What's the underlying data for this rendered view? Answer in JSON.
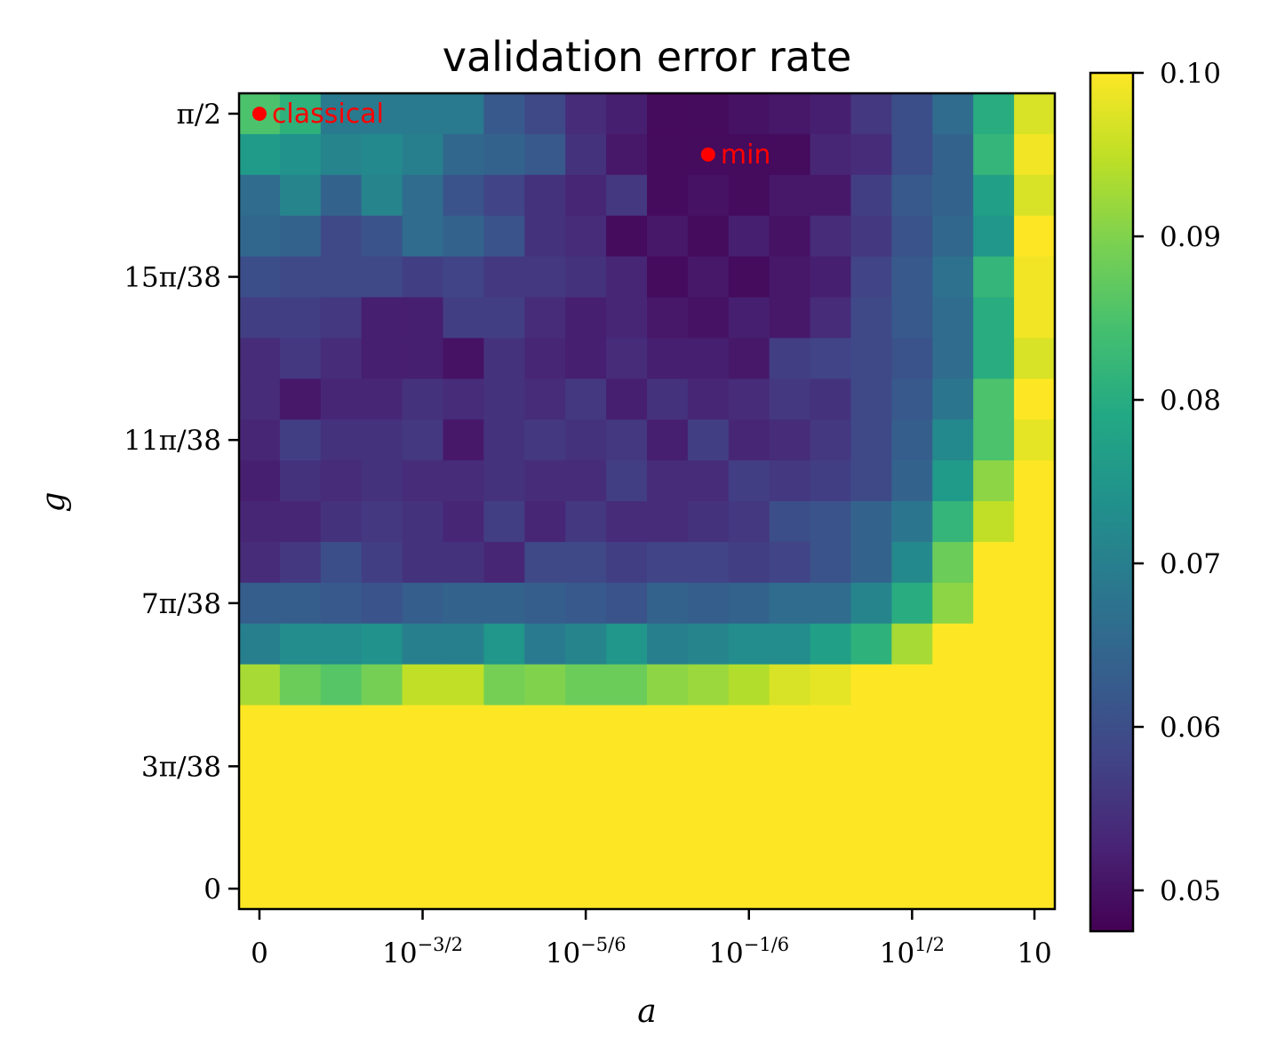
{
  "chart_data": {
    "type": "heatmap",
    "title": "validation error rate",
    "xlabel": "a",
    "ylabel": "g",
    "colormap": "viridis",
    "x_tick_labels": [
      {
        "col": 0,
        "text": "0"
      },
      {
        "col": 4,
        "text": "10",
        "sup": "−3/2"
      },
      {
        "col": 8,
        "text": "10",
        "sup": "−5/6"
      },
      {
        "col": 12,
        "text": "10",
        "sup": "−1/6"
      },
      {
        "col": 16,
        "text": "10",
        "sup": "1/2"
      },
      {
        "col": 19,
        "text": "10"
      }
    ],
    "y_tick_labels": [
      {
        "row": 0,
        "text": "π/2"
      },
      {
        "row": 4,
        "text": "15π/38"
      },
      {
        "row": 8,
        "text": "11π/38"
      },
      {
        "row": 12,
        "text": "7π/38"
      },
      {
        "row": 16,
        "text": "3π/38"
      },
      {
        "row": 19,
        "text": "0"
      }
    ],
    "colorbar": {
      "vmin": 0.0475,
      "vmax": 0.1,
      "ticks": [
        0.05,
        0.06,
        0.07,
        0.08,
        0.09,
        0.1
      ],
      "tick_labels": [
        "0.05",
        "0.06",
        "0.07",
        "0.08",
        "0.09",
        "0.10"
      ]
    },
    "grid": false,
    "rows_order": "top row = g=π/2, bottom row = g=0; columns from a=0 to a=10",
    "values": [
      [
        0.085,
        0.081,
        0.069,
        0.069,
        0.069,
        0.069,
        0.062,
        0.059,
        0.054,
        0.052,
        0.049,
        0.049,
        0.05,
        0.051,
        0.052,
        0.056,
        0.06,
        0.066,
        0.08,
        0.097
      ],
      [
        0.076,
        0.074,
        0.071,
        0.072,
        0.07,
        0.065,
        0.064,
        0.062,
        0.055,
        0.051,
        0.049,
        0.049,
        0.049,
        0.049,
        0.053,
        0.054,
        0.06,
        0.064,
        0.082,
        0.099
      ],
      [
        0.066,
        0.071,
        0.064,
        0.071,
        0.066,
        0.061,
        0.058,
        0.055,
        0.053,
        0.056,
        0.049,
        0.05,
        0.049,
        0.051,
        0.051,
        0.057,
        0.062,
        0.064,
        0.077,
        0.097
      ],
      [
        0.065,
        0.064,
        0.059,
        0.061,
        0.066,
        0.064,
        0.061,
        0.055,
        0.054,
        0.049,
        0.051,
        0.049,
        0.052,
        0.05,
        0.054,
        0.056,
        0.061,
        0.065,
        0.075,
        0.1
      ],
      [
        0.06,
        0.059,
        0.059,
        0.059,
        0.057,
        0.058,
        0.056,
        0.056,
        0.055,
        0.053,
        0.049,
        0.051,
        0.049,
        0.051,
        0.052,
        0.058,
        0.062,
        0.067,
        0.082,
        0.099
      ],
      [
        0.057,
        0.057,
        0.056,
        0.052,
        0.052,
        0.057,
        0.057,
        0.054,
        0.052,
        0.053,
        0.051,
        0.05,
        0.052,
        0.051,
        0.054,
        0.059,
        0.062,
        0.066,
        0.08,
        0.099
      ],
      [
        0.054,
        0.056,
        0.054,
        0.052,
        0.052,
        0.05,
        0.055,
        0.053,
        0.052,
        0.054,
        0.052,
        0.052,
        0.051,
        0.057,
        0.058,
        0.059,
        0.061,
        0.066,
        0.08,
        0.097
      ],
      [
        0.054,
        0.051,
        0.053,
        0.053,
        0.055,
        0.054,
        0.055,
        0.054,
        0.056,
        0.052,
        0.055,
        0.053,
        0.054,
        0.056,
        0.055,
        0.059,
        0.062,
        0.068,
        0.085,
        0.1
      ],
      [
        0.053,
        0.057,
        0.055,
        0.055,
        0.056,
        0.051,
        0.055,
        0.056,
        0.055,
        0.056,
        0.052,
        0.057,
        0.053,
        0.054,
        0.056,
        0.059,
        0.063,
        0.072,
        0.085,
        0.098
      ],
      [
        0.052,
        0.055,
        0.054,
        0.055,
        0.054,
        0.054,
        0.055,
        0.054,
        0.054,
        0.057,
        0.054,
        0.054,
        0.057,
        0.056,
        0.057,
        0.059,
        0.064,
        0.076,
        0.091,
        0.1
      ],
      [
        0.053,
        0.053,
        0.055,
        0.056,
        0.055,
        0.053,
        0.057,
        0.053,
        0.056,
        0.054,
        0.054,
        0.055,
        0.056,
        0.06,
        0.061,
        0.064,
        0.068,
        0.082,
        0.095,
        0.1
      ],
      [
        0.054,
        0.056,
        0.06,
        0.057,
        0.055,
        0.055,
        0.053,
        0.059,
        0.059,
        0.057,
        0.058,
        0.058,
        0.057,
        0.058,
        0.061,
        0.064,
        0.072,
        0.088,
        0.1,
        0.1
      ],
      [
        0.063,
        0.063,
        0.062,
        0.061,
        0.063,
        0.064,
        0.064,
        0.063,
        0.062,
        0.061,
        0.064,
        0.063,
        0.064,
        0.066,
        0.066,
        0.071,
        0.08,
        0.091,
        0.1,
        0.1
      ],
      [
        0.07,
        0.073,
        0.073,
        0.074,
        0.07,
        0.07,
        0.075,
        0.069,
        0.071,
        0.075,
        0.07,
        0.071,
        0.073,
        0.073,
        0.077,
        0.081,
        0.093,
        0.1,
        0.1,
        0.1
      ],
      [
        0.093,
        0.088,
        0.086,
        0.089,
        0.095,
        0.095,
        0.089,
        0.09,
        0.088,
        0.088,
        0.091,
        0.092,
        0.094,
        0.097,
        0.098,
        0.1,
        0.1,
        0.1,
        0.1,
        0.1
      ],
      [
        0.1,
        0.1,
        0.1,
        0.1,
        0.1,
        0.1,
        0.1,
        0.1,
        0.1,
        0.1,
        0.1,
        0.1,
        0.1,
        0.1,
        0.1,
        0.1,
        0.1,
        0.1,
        0.1,
        0.1
      ],
      [
        0.1,
        0.1,
        0.1,
        0.1,
        0.1,
        0.1,
        0.1,
        0.1,
        0.1,
        0.1,
        0.1,
        0.1,
        0.1,
        0.1,
        0.1,
        0.1,
        0.1,
        0.1,
        0.1,
        0.1
      ],
      [
        0.1,
        0.1,
        0.1,
        0.1,
        0.1,
        0.1,
        0.1,
        0.1,
        0.1,
        0.1,
        0.1,
        0.1,
        0.1,
        0.1,
        0.1,
        0.1,
        0.1,
        0.1,
        0.1,
        0.1
      ],
      [
        0.1,
        0.1,
        0.1,
        0.1,
        0.1,
        0.1,
        0.1,
        0.1,
        0.1,
        0.1,
        0.1,
        0.1,
        0.1,
        0.1,
        0.1,
        0.1,
        0.1,
        0.1,
        0.1,
        0.1
      ],
      [
        0.1,
        0.1,
        0.1,
        0.1,
        0.1,
        0.1,
        0.1,
        0.1,
        0.1,
        0.1,
        0.1,
        0.1,
        0.1,
        0.1,
        0.1,
        0.1,
        0.1,
        0.1,
        0.1,
        0.1
      ]
    ],
    "annotations": [
      {
        "label": "classical",
        "col": 0,
        "row": 0,
        "color": "#ff0000"
      },
      {
        "label": "min",
        "col": 11,
        "row": 1,
        "color": "#ff0000"
      }
    ]
  }
}
